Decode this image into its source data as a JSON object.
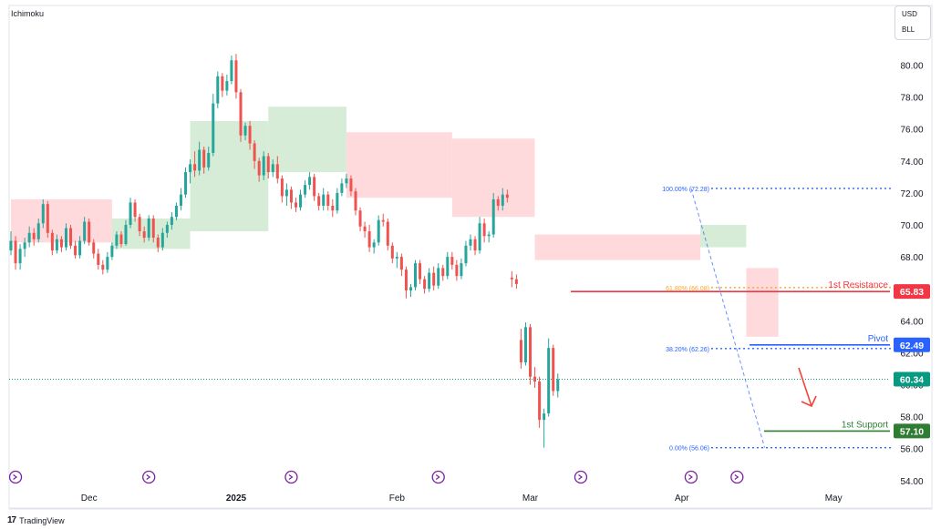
{
  "indicator": "Ichimoku",
  "currency": [
    "USD",
    "BLL"
  ],
  "footer": {
    "logo_mark": "17",
    "brand": "TradingView"
  },
  "colors": {
    "up": "#26a69a",
    "down": "#ef5350",
    "cloud_bull": "#c8e6c9",
    "cloud_bear": "#ffcdd2",
    "fib": "#2962ff",
    "fib_gold": "#f9a825",
    "resistance": "#f23645",
    "pivot": "#2962ff",
    "support": "#2e7d32",
    "current": "#089981",
    "arrow": "#f44336",
    "event": "#7b1fa2"
  },
  "chart_data": {
    "type": "candlestick",
    "title": "",
    "xlabel": "",
    "ylabel": "",
    "ylim": [
      53.5,
      81.5
    ],
    "y_ticks": [
      "80.00",
      "78.00",
      "76.00",
      "74.00",
      "72.00",
      "70.00",
      "68.00",
      "66.00",
      "64.00",
      "62.00",
      "60.00",
      "58.00",
      "56.00",
      "54.00"
    ],
    "x_ticks": [
      {
        "label": "Dec",
        "bar": 17
      },
      {
        "label": "2025",
        "bar": 49
      },
      {
        "label": "Feb",
        "bar": 84
      },
      {
        "label": "Mar",
        "bar": 113
      },
      {
        "label": "Apr",
        "bar": 146
      },
      {
        "label": "May",
        "bar": 179
      }
    ],
    "candles": [
      [
        68.4,
        69.6,
        68.1,
        69.0
      ],
      [
        69.0,
        69.3,
        67.2,
        67.6
      ],
      [
        67.6,
        68.8,
        67.2,
        68.5
      ],
      [
        68.5,
        69.2,
        68.0,
        68.9
      ],
      [
        68.9,
        69.9,
        68.6,
        69.5
      ],
      [
        69.5,
        69.8,
        68.7,
        69.1
      ],
      [
        69.1,
        70.4,
        68.9,
        70.1
      ],
      [
        70.1,
        71.6,
        69.8,
        71.3
      ],
      [
        71.3,
        71.5,
        69.2,
        69.5
      ],
      [
        69.5,
        69.7,
        68.1,
        68.4
      ],
      [
        68.4,
        69.4,
        68.2,
        69.1
      ],
      [
        69.1,
        69.3,
        68.3,
        68.6
      ],
      [
        68.6,
        70.1,
        68.4,
        69.8
      ],
      [
        69.8,
        70.0,
        68.5,
        68.7
      ],
      [
        68.7,
        69.0,
        67.9,
        68.1
      ],
      [
        68.1,
        69.3,
        67.9,
        69.0
      ],
      [
        69.0,
        70.5,
        68.8,
        70.2
      ],
      [
        70.2,
        70.4,
        68.7,
        68.9
      ],
      [
        68.9,
        69.1,
        67.9,
        68.2
      ],
      [
        68.2,
        68.5,
        67.2,
        67.5
      ],
      [
        67.5,
        67.8,
        66.9,
        67.2
      ],
      [
        67.2,
        68.3,
        67.0,
        68.0
      ],
      [
        68.0,
        68.9,
        67.8,
        68.7
      ],
      [
        68.7,
        69.6,
        68.5,
        69.4
      ],
      [
        69.4,
        69.6,
        68.6,
        68.8
      ],
      [
        68.8,
        70.3,
        68.7,
        70.0
      ],
      [
        70.0,
        71.7,
        69.8,
        71.4
      ],
      [
        71.4,
        71.6,
        70.2,
        70.5
      ],
      [
        70.5,
        70.7,
        69.3,
        69.6
      ],
      [
        69.6,
        69.9,
        68.9,
        69.2
      ],
      [
        69.2,
        70.6,
        69.0,
        70.4
      ],
      [
        70.4,
        70.6,
        68.9,
        69.2
      ],
      [
        69.2,
        69.4,
        68.3,
        68.6
      ],
      [
        68.6,
        69.8,
        68.4,
        69.5
      ],
      [
        69.5,
        70.2,
        69.2,
        70.0
      ],
      [
        70.0,
        70.8,
        69.7,
        70.5
      ],
      [
        70.5,
        71.4,
        70.3,
        71.2
      ],
      [
        71.2,
        72.3,
        70.9,
        71.9
      ],
      [
        71.9,
        73.6,
        71.7,
        73.3
      ],
      [
        73.3,
        74.1,
        72.6,
        73.8
      ],
      [
        73.8,
        74.6,
        73.0,
        73.4
      ],
      [
        73.4,
        75.2,
        73.1,
        74.7
      ],
      [
        74.7,
        74.9,
        73.2,
        73.6
      ],
      [
        73.6,
        74.9,
        73.4,
        74.5
      ],
      [
        74.5,
        78.2,
        74.3,
        77.6
      ],
      [
        77.6,
        79.6,
        77.3,
        79.3
      ],
      [
        79.3,
        79.5,
        78.0,
        78.4
      ],
      [
        78.4,
        79.4,
        78.1,
        79.0
      ],
      [
        79.0,
        80.6,
        78.8,
        80.3
      ],
      [
        80.3,
        80.7,
        77.9,
        78.3
      ],
      [
        78.3,
        78.5,
        75.2,
        75.6
      ],
      [
        75.6,
        76.4,
        75.3,
        76.2
      ],
      [
        76.2,
        76.5,
        74.7,
        75.1
      ],
      [
        75.1,
        75.3,
        73.5,
        74.0
      ],
      [
        74.0,
        74.2,
        72.7,
        73.1
      ],
      [
        73.1,
        74.6,
        72.8,
        74.3
      ],
      [
        74.3,
        74.5,
        72.9,
        73.3
      ],
      [
        73.3,
        74.1,
        73.0,
        73.8
      ],
      [
        73.8,
        74.3,
        72.6,
        72.9
      ],
      [
        72.9,
        73.1,
        71.4,
        71.8
      ],
      [
        71.8,
        72.6,
        71.2,
        72.2
      ],
      [
        72.2,
        72.4,
        71.0,
        71.4
      ],
      [
        71.4,
        71.7,
        70.8,
        71.1
      ],
      [
        71.1,
        72.2,
        70.9,
        71.9
      ],
      [
        71.9,
        72.8,
        71.7,
        72.5
      ],
      [
        72.5,
        73.3,
        72.2,
        73.0
      ],
      [
        73.0,
        73.2,
        71.5,
        71.8
      ],
      [
        71.8,
        72.0,
        70.9,
        71.2
      ],
      [
        71.2,
        72.3,
        70.9,
        71.9
      ],
      [
        71.9,
        72.1,
        70.9,
        71.2
      ],
      [
        71.2,
        71.6,
        70.5,
        70.9
      ],
      [
        70.9,
        72.3,
        70.7,
        72.0
      ],
      [
        72.0,
        72.9,
        71.8,
        72.6
      ],
      [
        72.6,
        73.2,
        72.3,
        72.9
      ],
      [
        72.9,
        73.1,
        71.8,
        72.1
      ],
      [
        72.1,
        72.3,
        70.6,
        70.9
      ],
      [
        70.9,
        71.1,
        69.6,
        69.9
      ],
      [
        69.9,
        70.2,
        69.2,
        69.6
      ],
      [
        69.6,
        70.0,
        68.3,
        68.6
      ],
      [
        68.6,
        69.1,
        68.2,
        68.9
      ],
      [
        68.9,
        70.6,
        68.7,
        70.3
      ],
      [
        70.3,
        70.7,
        69.9,
        70.2
      ],
      [
        70.2,
        70.4,
        68.4,
        68.7
      ],
      [
        68.7,
        68.9,
        67.6,
        67.9
      ],
      [
        67.9,
        68.3,
        67.3,
        68.0
      ],
      [
        68.0,
        68.2,
        66.8,
        67.2
      ],
      [
        67.2,
        67.4,
        65.4,
        65.9
      ],
      [
        65.9,
        66.3,
        65.5,
        66.1
      ],
      [
        66.1,
        67.8,
        65.9,
        67.6
      ],
      [
        67.6,
        67.8,
        66.3,
        66.6
      ],
      [
        66.6,
        66.8,
        65.7,
        66.0
      ],
      [
        66.0,
        67.3,
        65.8,
        67.0
      ],
      [
        67.0,
        67.4,
        65.9,
        66.2
      ],
      [
        66.2,
        67.6,
        66.0,
        67.3
      ],
      [
        67.3,
        67.5,
        66.5,
        66.8
      ],
      [
        66.8,
        68.3,
        66.6,
        68.0
      ],
      [
        68.0,
        68.3,
        67.2,
        67.5
      ],
      [
        67.5,
        67.8,
        66.5,
        66.8
      ],
      [
        66.8,
        67.9,
        66.6,
        67.6
      ],
      [
        67.6,
        69.0,
        67.4,
        68.7
      ],
      [
        68.7,
        69.4,
        68.4,
        69.1
      ],
      [
        69.1,
        69.3,
        68.1,
        68.4
      ],
      [
        68.4,
        70.5,
        68.2,
        70.1
      ],
      [
        70.1,
        70.4,
        68.9,
        69.3
      ],
      [
        69.3,
        69.6,
        68.9,
        69.4
      ],
      [
        69.4,
        72.0,
        69.2,
        71.6
      ],
      [
        71.6,
        71.8,
        70.9,
        71.2
      ],
      [
        71.2,
        72.3,
        70.9,
        71.9
      ],
      [
        71.9,
        72.2,
        71.4,
        71.7
      ],
      [
        66.7,
        67.1,
        66.1,
        66.6
      ],
      [
        66.6,
        66.9,
        66.0,
        66.3
      ],
      [
        62.8,
        63.5,
        61.0,
        61.4
      ],
      [
        61.4,
        63.9,
        61.2,
        63.6
      ],
      [
        63.6,
        63.8,
        60.0,
        60.5
      ],
      [
        60.5,
        61.1,
        59.8,
        60.2
      ],
      [
        60.2,
        60.5,
        57.3,
        57.8
      ],
      [
        57.8,
        58.5,
        56.06,
        58.2
      ],
      [
        58.2,
        62.9,
        58.0,
        62.3
      ],
      [
        62.3,
        62.5,
        59.3,
        59.6
      ],
      [
        59.6,
        60.7,
        59.2,
        60.34
      ]
    ],
    "candle_x_offsets": [
      0,
      0,
      0,
      0,
      0,
      0,
      0,
      0,
      0,
      0,
      0,
      0,
      0,
      0,
      0,
      0,
      0,
      0,
      0,
      0,
      0,
      0,
      0,
      0,
      0,
      0,
      0,
      0,
      0,
      0,
      0,
      0,
      0,
      0,
      0,
      0,
      0,
      0,
      0,
      0,
      0,
      0,
      0,
      0,
      0,
      0,
      0,
      0,
      0,
      0,
      0,
      0,
      0,
      0,
      0,
      0,
      0,
      0,
      0,
      0,
      0,
      0,
      0,
      0,
      0,
      0,
      0,
      0,
      0,
      0,
      0,
      0,
      0,
      0,
      0,
      0,
      0,
      0,
      0,
      0,
      0,
      0,
      0,
      0,
      0,
      0,
      0,
      0,
      0,
      0,
      0,
      0,
      0,
      0,
      0,
      0,
      0,
      0,
      0,
      0,
      0,
      0,
      0,
      0,
      0,
      0,
      0,
      0,
      0,
      0,
      0,
      0,
      0,
      0,
      0,
      0,
      0,
      0,
      0,
      0,
      0,
      0,
      0,
      0,
      0,
      0,
      0,
      0,
      0,
      0,
      0,
      0
    ],
    "ichimoku_cloud": [
      {
        "from": 0,
        "to": 22,
        "kind": "bear",
        "top": 71.6,
        "bottom": 68.9
      },
      {
        "from": 22,
        "to": 39,
        "kind": "bull",
        "top": 70.4,
        "bottom": 68.5
      },
      {
        "from": 39,
        "to": 56,
        "kind": "bull",
        "top": 76.5,
        "bottom": 69.6
      },
      {
        "from": 56,
        "to": 73,
        "kind": "bull",
        "top": 77.4,
        "bottom": 73.3
      },
      {
        "from": 73,
        "to": 96,
        "kind": "bear",
        "top": 75.8,
        "bottom": 71.7
      },
      {
        "from": 96,
        "to": 114,
        "kind": "bear",
        "top": 75.4,
        "bottom": 70.5
      },
      {
        "from": 114,
        "to": 150,
        "kind": "bear",
        "top": 69.4,
        "bottom": 67.8
      },
      {
        "from": 150,
        "to": 160,
        "kind": "bull",
        "top": 70.0,
        "bottom": 68.6
      },
      {
        "from": 160,
        "to": 167,
        "kind": "bear",
        "top": 67.3,
        "bottom": 63.0
      }
    ],
    "fibonacci": [
      {
        "label": "100.00% (72.28)",
        "value": 72.28,
        "tone": "fib"
      },
      {
        "label": "61.80% (66.08)",
        "value": 66.08,
        "tone": "fib_gold"
      },
      {
        "label": "38.20% (62.26)",
        "value": 62.26,
        "tone": "fib"
      },
      {
        "label": "0.00% (56.06)",
        "value": 56.06,
        "tone": "fib"
      }
    ],
    "levels": [
      {
        "name": "1st Resistance",
        "value": 65.83,
        "price_label": "65.83",
        "tone": "resistance"
      },
      {
        "name": "Pivot",
        "value": 62.49,
        "price_label": "62.49",
        "tone": "pivot"
      },
      {
        "name": "1st Support",
        "value": 57.1,
        "price_label": "57.10",
        "tone": "support"
      }
    ],
    "current_price": {
      "value": 60.34,
      "label": "60.34"
    },
    "event_markers": [
      1,
      30,
      61,
      93,
      124,
      148,
      158
    ]
  }
}
